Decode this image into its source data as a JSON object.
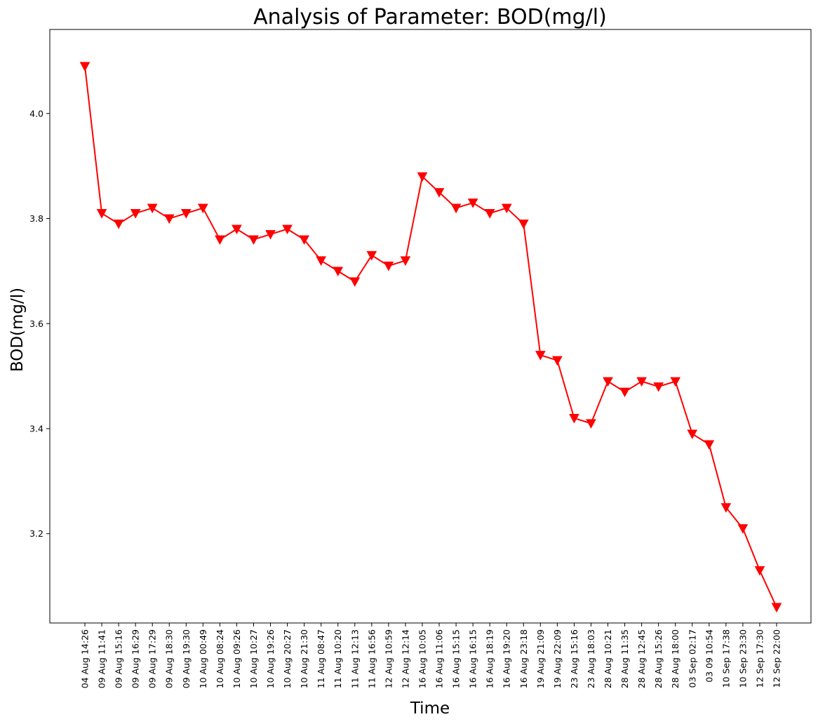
{
  "chart_data": {
    "type": "line",
    "title": "Analysis of Parameter: BOD(mg/l)",
    "xlabel": "Time",
    "ylabel": "BOD(mg/l)",
    "ylim": [
      3.03,
      4.16
    ],
    "yticks": [
      "3.2",
      "3.4",
      "3.6",
      "3.8",
      "4.0"
    ],
    "grid": false,
    "categories": [
      "04 Aug 14:26",
      "09 Aug 11:41",
      "09 Aug 15:16",
      "09 Aug 16:29",
      "09 Aug 17:29",
      "09 Aug 18:30",
      "09 Aug 19:30",
      "10 Aug 00:49",
      "10 Aug 08:24",
      "10 Aug 09:26",
      "10 Aug 10:27",
      "10 Aug 19:26",
      "10 Aug 20:27",
      "10 Aug 21:30",
      "11 Aug 08:47",
      "11 Aug 10:20",
      "11 Aug 12:13",
      "11 Aug 16:56",
      "12 Aug 10:59",
      "12 Aug 12:14",
      "16 Aug 10:05",
      "16 Aug 11:06",
      "16 Aug 15:15",
      "16 Aug 16:15",
      "16 Aug 18:19",
      "16 Aug 19:20",
      "16 Aug 23:18",
      "19 Aug 21:09",
      "19 Aug 22:09",
      "23 Aug 15:16",
      "23 Aug 18:03",
      "28 Aug 10:21",
      "28 Aug 11:35",
      "28 Aug 12:45",
      "28 Aug 15:26",
      "28 Aug 18:00",
      "03 Sep 02:17",
      "03 09 10:54",
      "10 Sep 17:38",
      "10 Sep 23:30",
      "12 Sep 17:30",
      "12 Sep 22:00"
    ],
    "series": [
      {
        "color": "#ff0000",
        "marker": "triangle-down",
        "values": [
          4.09,
          3.81,
          3.79,
          3.81,
          3.82,
          3.8,
          3.81,
          3.82,
          3.76,
          3.78,
          3.76,
          3.77,
          3.78,
          3.76,
          3.72,
          3.7,
          3.68,
          3.73,
          3.71,
          3.72,
          3.88,
          3.85,
          3.82,
          3.83,
          3.81,
          3.82,
          3.79,
          3.54,
          3.53,
          3.42,
          3.41,
          3.49,
          3.47,
          3.49,
          3.48,
          3.49,
          3.39,
          3.37,
          3.25,
          3.21,
          3.13,
          3.06
        ]
      }
    ]
  }
}
